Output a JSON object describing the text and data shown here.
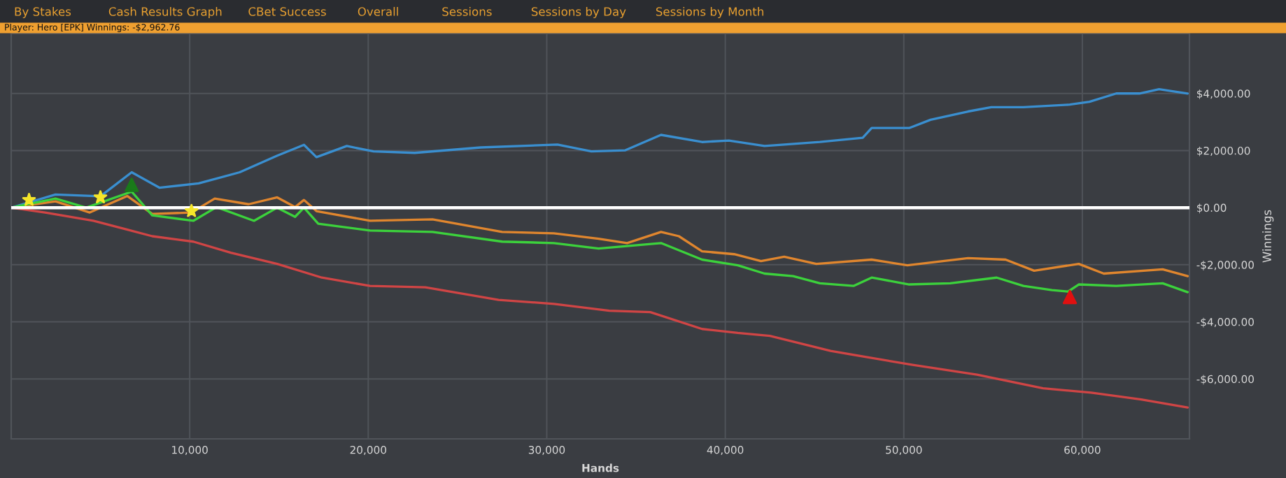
{
  "chart_data": {
    "type": "line",
    "subtitle": "Player: Hero [EPK] Winnings: -$2,962.76",
    "annotations": [
      "By Stakes",
      "Cash Results Graph",
      "CBet Success",
      "Overall",
      "Sessions",
      "Sessions by Day",
      "Sessions by Month"
    ],
    "xlabel": "Hands",
    "ylabel": "Winnings",
    "xlim": [
      0,
      66000
    ],
    "ylim": [
      -8100,
      6100
    ],
    "xticks": [
      {
        "value": 10000,
        "label": "10,000"
      },
      {
        "value": 20000,
        "label": "20,000"
      },
      {
        "value": 30000,
        "label": "30,000"
      },
      {
        "value": 40000,
        "label": "40,000"
      },
      {
        "value": 50000,
        "label": "50,000"
      },
      {
        "value": 60000,
        "label": "60,000"
      }
    ],
    "yticks": [
      {
        "value": -6000,
        "label": "-$6,000.00"
      },
      {
        "value": -4000,
        "label": "-$4,000.00"
      },
      {
        "value": -2000,
        "label": "-$2,000.00"
      },
      {
        "value": 0,
        "label": "$0.00"
      },
      {
        "value": 2000,
        "label": "$2,000.00"
      },
      {
        "value": 4000,
        "label": "$4,000.00"
      }
    ],
    "grid": true,
    "legend": false,
    "ref_lines": [
      {
        "axis": "y",
        "value": 0,
        "color": "#ffffff"
      }
    ],
    "series": [
      {
        "color": "#3a8fd0",
        "x": [
          0,
          2480,
          5000,
          6750,
          8300,
          10500,
          12800,
          14900,
          16400,
          17100,
          18800,
          20300,
          22600,
          26300,
          30600,
          32500,
          34400,
          36400,
          38700,
          40200,
          42200,
          43300,
          45300,
          47700,
          48200,
          50300,
          51500,
          53600,
          54900,
          56700,
          59300,
          60400,
          61900,
          63200,
          64300,
          65900
        ],
        "values": [
          0,
          460,
          400,
          1240,
          700,
          850,
          1240,
          1820,
          2200,
          1770,
          2160,
          1970,
          1920,
          2110,
          2210,
          1970,
          2010,
          2550,
          2300,
          2350,
          2160,
          2210,
          2300,
          2450,
          2790,
          2790,
          3080,
          3370,
          3520,
          3520,
          3610,
          3710,
          4000,
          4000,
          4150,
          4000
        ]
      },
      {
        "color": "#e0862e",
        "x": [
          0,
          2480,
          4400,
          6500,
          7900,
          10100,
          11400,
          13300,
          14900,
          15900,
          16400,
          17100,
          20100,
          23600,
          27500,
          30400,
          32900,
          34500,
          36400,
          37400,
          38700,
          40500,
          42000,
          43300,
          45100,
          48200,
          50200,
          53600,
          55700,
          57300,
          59800,
          61200,
          64500,
          65900
        ],
        "values": [
          0,
          220,
          -170,
          410,
          -220,
          -170,
          320,
          120,
          360,
          20,
          270,
          -120,
          -460,
          -410,
          -850,
          -900,
          -1090,
          -1240,
          -850,
          -1000,
          -1530,
          -1630,
          -1870,
          -1720,
          -1970,
          -1820,
          -2020,
          -1770,
          -1820,
          -2210,
          -1970,
          -2310,
          -2160,
          -2400
        ]
      },
      {
        "color": "#3cd23c",
        "x": [
          0,
          2480,
          4200,
          6750,
          7900,
          10200,
          11500,
          13600,
          14900,
          15900,
          16400,
          17200,
          20100,
          23600,
          27500,
          30400,
          32900,
          36400,
          38700,
          40700,
          42200,
          43800,
          45300,
          47200,
          48200,
          50300,
          52600,
          55200,
          56700,
          58300,
          59200,
          59800,
          61900,
          64500,
          65900
        ],
        "values": [
          0,
          320,
          0,
          560,
          -270,
          -460,
          20,
          -460,
          0,
          -320,
          0,
          -560,
          -800,
          -850,
          -1190,
          -1240,
          -1430,
          -1240,
          -1820,
          -2020,
          -2310,
          -2400,
          -2650,
          -2740,
          -2450,
          -2690,
          -2650,
          -2450,
          -2740,
          -2890,
          -2940,
          -2690,
          -2740,
          -2650,
          -2960
        ]
      },
      {
        "color": "#d04545",
        "x": [
          0,
          1900,
          4600,
          6400,
          7900,
          10200,
          12300,
          14900,
          17400,
          20100,
          23200,
          27300,
          30400,
          33500,
          35800,
          38700,
          40700,
          42500,
          45900,
          50500,
          54100,
          57800,
          60500,
          63300,
          65900
        ],
        "values": [
          0,
          -170,
          -460,
          -750,
          -1000,
          -1190,
          -1580,
          -1970,
          -2450,
          -2740,
          -2790,
          -3230,
          -3370,
          -3610,
          -3660,
          -4250,
          -4390,
          -4490,
          -5020,
          -5510,
          -5850,
          -6330,
          -6480,
          -6720,
          -7000
        ]
      },
      {
        "type": "scatter",
        "marker": "star",
        "color": "#f5e62a",
        "x": [
          1000,
          5000,
          10100
        ],
        "values": [
          270,
          360,
          -120
        ]
      },
      {
        "type": "scatter",
        "marker": "triangle",
        "color": "#1a7a1a",
        "x": [
          6750
        ],
        "values": [
          800
        ]
      },
      {
        "type": "scatter",
        "marker": "triangle",
        "color": "#e01010",
        "x": [
          59300
        ],
        "values": [
          -3130
        ]
      }
    ]
  }
}
